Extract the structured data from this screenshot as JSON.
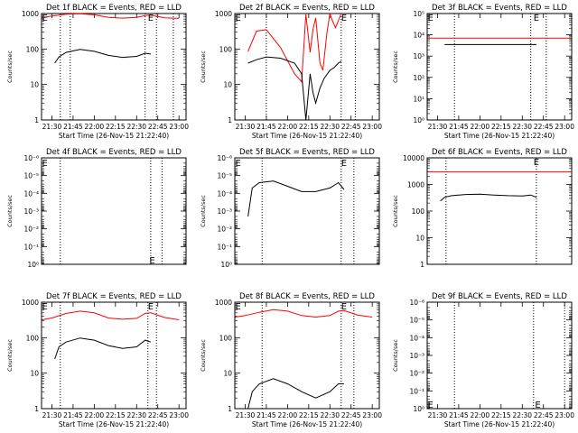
{
  "chart_data": [
    {
      "type": "line",
      "title": "Det 1f BLACK = Events, RED = LLD",
      "xlabel": "Start Time (26-Nov-15 21:22:40)",
      "ylabel": "Counts/sec",
      "yscale": "log",
      "ylim": [
        1,
        1000
      ],
      "xlim": [
        "21:22:40",
        "23:05:00"
      ],
      "x_ticks": [
        "21:30",
        "21:45",
        "22:00",
        "22:15",
        "22:30",
        "22:45",
        "23:00"
      ],
      "y_ticks": [
        "1",
        "10",
        "100",
        "1000"
      ],
      "vlines": [
        "21:36",
        "21:43",
        "22:36",
        "22:44",
        "22:56"
      ],
      "markers": [
        {
          "text": "E",
          "x": "21:23",
          "y": 1000
        },
        {
          "text": "E",
          "x": "22:38",
          "y": 1000
        }
      ],
      "series": [
        {
          "color": "#ff0000",
          "x": [
            "21:23",
            "21:30",
            "21:40",
            "21:50",
            "22:00",
            "22:10",
            "22:20",
            "22:30",
            "22:36",
            "22:40",
            "22:50",
            "23:00"
          ],
          "y": [
            760,
            850,
            960,
            990,
            920,
            780,
            740,
            780,
            880,
            900,
            760,
            730
          ]
        },
        {
          "color": "#000000",
          "x": [
            "21:32",
            "21:35",
            "21:40",
            "21:50",
            "22:00",
            "22:10",
            "22:20",
            "22:30",
            "22:36",
            "22:40"
          ],
          "y": [
            40,
            60,
            80,
            98,
            86,
            66,
            58,
            62,
            76,
            72
          ]
        }
      ]
    },
    {
      "type": "line",
      "title": "Det 2f BLACK = Events, RED = LLD",
      "xlabel": "Start Time (26-Nov-15 21:22:40)",
      "ylabel": "Counts/sec",
      "yscale": "log",
      "ylim": [
        1,
        1000
      ],
      "xlim": [
        "21:22:40",
        "23:05:00"
      ],
      "x_ticks": [
        "21:30",
        "21:45",
        "22:00",
        "22:15",
        "22:30",
        "22:45",
        "23:00"
      ],
      "y_ticks": [
        "1",
        "10",
        "100",
        "1000"
      ],
      "vlines": [
        "21:45",
        "22:38",
        "22:48"
      ],
      "markers": [
        {
          "text": "E",
          "x": "21:23",
          "y": 1000
        },
        {
          "text": "E",
          "x": "22:38",
          "y": 1000
        }
      ],
      "series": [
        {
          "color": "#ff0000",
          "x": [
            "21:32",
            "21:38",
            "21:45",
            "21:55",
            "22:05",
            "22:10",
            "22:13",
            "22:16",
            "22:18",
            "22:20",
            "22:23",
            "22:25",
            "22:28",
            "22:30",
            "22:32",
            "22:34",
            "22:38"
          ],
          "y": [
            85,
            320,
            350,
            110,
            20,
            12,
            950,
            80,
            350,
            750,
            40,
            25,
            300,
            1000,
            600,
            400,
            1000
          ]
        },
        {
          "color": "#000000",
          "x": [
            "21:32",
            "21:38",
            "21:45",
            "21:55",
            "22:05",
            "22:10",
            "22:13",
            "22:16",
            "22:18",
            "22:20",
            "22:23",
            "22:26",
            "22:30",
            "22:33",
            "22:36",
            "22:38"
          ],
          "y": [
            40,
            50,
            60,
            55,
            40,
            20,
            1,
            20,
            6,
            3,
            8,
            15,
            25,
            30,
            40,
            45
          ]
        }
      ]
    },
    {
      "type": "line",
      "title": "Det 3f BLACK = Events, RED = LLD",
      "xlabel": "Start Time (26-Nov-15 21:22:40)",
      "ylabel": "Counts/sec",
      "yscale": "log",
      "ylim": [
        "10⁰",
        "10⁵"
      ],
      "xlim": [
        "21:22:40",
        "23:05:00"
      ],
      "x_ticks": [
        "21:30",
        "21:45",
        "22:00",
        "22:15",
        "22:30",
        "22:45",
        "23:00"
      ],
      "y_ticks": [
        "10⁰",
        "10¹",
        "10²",
        "10³",
        "10⁴",
        "10⁵"
      ],
      "vlines": [
        "21:42",
        "22:36",
        "22:47"
      ],
      "markers": [
        {
          "text": "E",
          "x": "21:23",
          "y": 100000
        },
        {
          "text": "E",
          "x": "22:38",
          "y": 100000
        }
      ],
      "series": [
        {
          "color": "#ff0000",
          "x": [
            "21:23",
            "23:05"
          ],
          "y": [
            7000,
            7000
          ]
        },
        {
          "color": "#000000",
          "x": [
            "21:35",
            "21:45",
            "22:00",
            "22:15",
            "22:30",
            "22:40"
          ],
          "y": [
            3500,
            3500,
            3500,
            3500,
            3500,
            3500
          ]
        }
      ]
    },
    {
      "type": "line",
      "title": "Det 4f BLACK = Events, RED = LLD",
      "xlabel": "",
      "ylabel": "Counts/sec",
      "yscale": "log",
      "ylim": [
        "10⁰",
        "10⁻⁶"
      ],
      "xlim": [
        "21:22:40",
        "23:05:00"
      ],
      "x_ticks": [],
      "y_ticks": [
        "10⁰",
        "10⁻¹",
        "10⁻²",
        "10⁻³",
        "10⁻⁴",
        "10⁻⁵",
        "10⁻⁶"
      ],
      "vlines": [
        "21:36",
        "22:40",
        "22:48"
      ],
      "markers": [
        {
          "text": "E",
          "x": "21:23",
          "y": 1.25e-06
        },
        {
          "text": "E",
          "x": "22:39",
          "y": 1.2
        }
      ],
      "series": []
    },
    {
      "type": "line",
      "title": "Det 5f BLACK = Events, RED = LLD",
      "xlabel": "",
      "ylabel": "Counts/sec",
      "yscale": "log",
      "ylim": [
        "10⁰",
        "10⁻⁶"
      ],
      "xlim": [
        "21:22:40",
        "23:05:00"
      ],
      "x_ticks": [],
      "y_ticks": [
        "10⁰",
        "10⁻¹",
        "10⁻²",
        "10⁻³",
        "10⁻⁴",
        "10⁻⁵",
        "10⁻⁶"
      ],
      "vlines": [
        "21:42",
        "22:38",
        "22:47"
      ],
      "markers": [
        {
          "text": "E",
          "x": "21:23",
          "y": 1.25e-06
        },
        {
          "text": "E",
          "x": "22:38",
          "y": 1.25e-06
        }
      ],
      "series": [
        {
          "color": "#000000",
          "x": [
            "21:32",
            "21:35",
            "21:40",
            "21:50",
            "22:00",
            "22:10",
            "22:20",
            "22:30",
            "22:36",
            "22:40"
          ],
          "y": [
            0.002,
            5e-05,
            2.5e-05,
            2e-05,
            4e-05,
            8e-05,
            8e-05,
            5e-05,
            2.5e-05,
            6e-05
          ]
        }
      ]
    },
    {
      "type": "line",
      "title": "Det 6f BLACK = Events, RED = LLD",
      "xlabel": "",
      "ylabel": "Counts/sec",
      "yscale": "log",
      "ylim": [
        1,
        10000
      ],
      "xlim": [
        "21:22:40",
        "23:05:00"
      ],
      "x_ticks": [],
      "y_ticks": [
        "1",
        "10",
        "100",
        "1000",
        "10000"
      ],
      "vlines": [
        "21:36",
        "22:40"
      ],
      "markers": [
        {
          "text": "E",
          "x": "22:38",
          "y": 10000
        }
      ],
      "series": [
        {
          "color": "#ff0000",
          "x": [
            "21:23",
            "23:05"
          ],
          "y": [
            3000,
            3000
          ]
        },
        {
          "color": "#000000",
          "x": [
            "21:32",
            "21:35",
            "21:40",
            "21:50",
            "22:00",
            "22:10",
            "22:20",
            "22:30",
            "22:36",
            "22:40"
          ],
          "y": [
            240,
            330,
            380,
            420,
            430,
            400,
            380,
            370,
            400,
            330
          ]
        }
      ]
    },
    {
      "type": "line",
      "title": "Det 7f BLACK = Events, RED = LLD",
      "xlabel": "Start Time (26-Nov-15 21:22:40)",
      "ylabel": "Counts/sec",
      "yscale": "log",
      "ylim": [
        1,
        1000
      ],
      "xlim": [
        "21:22:40",
        "23:05:00"
      ],
      "x_ticks": [
        "21:30",
        "21:45",
        "22:00",
        "22:15",
        "22:30",
        "22:45",
        "23:00"
      ],
      "y_ticks": [
        "1",
        "10",
        "100",
        "1000"
      ],
      "vlines": [
        "21:36",
        "22:38",
        "22:44"
      ],
      "markers": [
        {
          "text": "E",
          "x": "21:23",
          "y": 1000
        },
        {
          "text": "E",
          "x": "22:38",
          "y": 1000
        }
      ],
      "series": [
        {
          "color": "#ff0000",
          "x": [
            "21:23",
            "21:30",
            "21:40",
            "21:50",
            "22:00",
            "22:10",
            "22:20",
            "22:30",
            "22:36",
            "22:40",
            "22:50",
            "23:00"
          ],
          "y": [
            320,
            360,
            480,
            560,
            500,
            360,
            330,
            350,
            480,
            500,
            370,
            320
          ]
        },
        {
          "color": "#000000",
          "x": [
            "21:32",
            "21:35",
            "21:40",
            "21:50",
            "22:00",
            "22:10",
            "22:20",
            "22:30",
            "22:36",
            "22:40"
          ],
          "y": [
            25,
            55,
            75,
            98,
            85,
            60,
            50,
            55,
            85,
            75
          ]
        }
      ]
    },
    {
      "type": "line",
      "title": "Det 8f BLACK = Events, RED = LLD",
      "xlabel": "Start Time (26-Nov-15 21:22:40)",
      "ylabel": "Counts/sec",
      "yscale": "log",
      "ylim": [
        1,
        1000
      ],
      "xlim": [
        "21:22:40",
        "23:05:00"
      ],
      "x_ticks": [
        "21:30",
        "21:45",
        "22:00",
        "22:15",
        "22:30",
        "22:45",
        "23:00"
      ],
      "y_ticks": [
        "1",
        "10",
        "100",
        "1000"
      ],
      "vlines": [
        "21:42",
        "22:38",
        "22:47"
      ],
      "markers": [
        {
          "text": "E",
          "x": "21:23",
          "y": 1000
        },
        {
          "text": "E",
          "x": "22:38",
          "y": 1000
        }
      ],
      "series": [
        {
          "color": "#ff0000",
          "x": [
            "21:23",
            "21:30",
            "21:40",
            "21:50",
            "22:00",
            "22:10",
            "22:20",
            "22:30",
            "22:36",
            "22:40",
            "22:50",
            "23:00"
          ],
          "y": [
            380,
            420,
            520,
            620,
            560,
            420,
            380,
            420,
            560,
            580,
            430,
            380
          ]
        },
        {
          "color": "#000000",
          "x": [
            "21:32",
            "21:35",
            "21:40",
            "21:50",
            "22:00",
            "22:10",
            "22:20",
            "22:30",
            "22:36",
            "22:40"
          ],
          "y": [
            1,
            3,
            5,
            7,
            5,
            3,
            2,
            3,
            5,
            5
          ]
        }
      ]
    },
    {
      "type": "line",
      "title": "Det 9f BLACK = Events, RED = LLD",
      "xlabel": "Start Time (26-Nov-15 21:22:40)",
      "ylabel": "Counts/sec",
      "yscale": "log",
      "ylim": [
        "10⁰",
        "10⁻⁶"
      ],
      "xlim": [
        "21:22:40",
        "23:05:00"
      ],
      "x_ticks": [
        "21:30",
        "21:45",
        "22:00",
        "22:15",
        "22:30",
        "22:45",
        "23:00"
      ],
      "y_ticks": [
        "10⁰",
        "10⁻¹",
        "10⁻²",
        "10⁻³",
        "10⁻⁴",
        "10⁻⁵",
        "10⁻⁶"
      ],
      "vlines": [
        "21:42",
        "22:38",
        "23:00"
      ],
      "markers": [
        {
          "text": "E",
          "x": "21:23",
          "y": 1.2
        },
        {
          "text": "E",
          "x": "22:39",
          "y": 1.2
        }
      ],
      "series": []
    }
  ]
}
